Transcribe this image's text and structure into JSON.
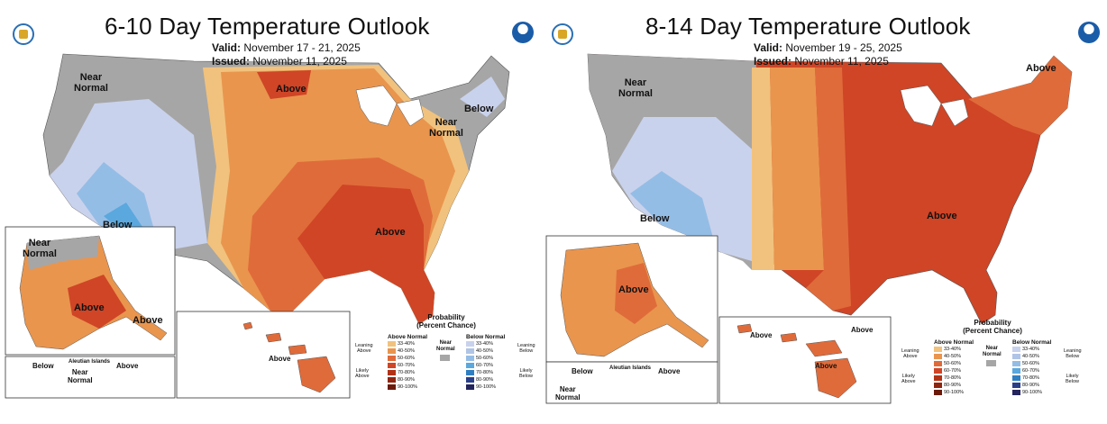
{
  "left": {
    "title": "6-10 Day Temperature Outlook",
    "valid_label": "Valid:",
    "valid": "November 17 - 21, 2025",
    "issued_label": "Issued:",
    "issued": "November 11, 2025",
    "map_labels": {
      "near_normal_nw": "Near\nNormal",
      "above_north": "Above",
      "below_ne": "Below",
      "near_normal_ne": "Near\nNormal",
      "below_sw": "Below",
      "above_se": "Above",
      "ak_near_normal": "Near\nNormal",
      "ak_above": "Above",
      "ak_above_se": "Above",
      "aleutian_title": "Aleutian Islands",
      "aleutian_below": "Below",
      "aleutian_near_normal": "Near\nNormal",
      "aleutian_above": "Above",
      "hi_above": "Above"
    },
    "legend": {
      "title": "Probability\n(Percent Chance)",
      "above_header": "Above Normal",
      "below_header": "Below Normal",
      "near_normal": "Near\nNormal",
      "leaning_above": "Leaning\nAbove",
      "likely_above": "Likely\nAbove",
      "leaning_below": "Leaning\nBelow",
      "likely_below": "Likely\nBelow",
      "ranges": [
        "33-40%",
        "40-50%",
        "50-60%",
        "60-70%",
        "70-80%",
        "80-90%",
        "90-100%"
      ]
    }
  },
  "right": {
    "title": "8-14 Day Temperature Outlook",
    "valid_label": "Valid:",
    "valid": "November 19 - 25, 2025",
    "issued_label": "Issued:",
    "issued": "November 11, 2025",
    "map_labels": {
      "near_normal_nw": "Near\nNormal",
      "above_ne": "Above",
      "below_sw": "Below",
      "above_se": "Above",
      "ak_above": "Above",
      "aleutian_title": "Aleutian Islands",
      "aleutian_below": "Below",
      "aleutian_near_normal": "Near\nNormal",
      "aleutian_above": "Above",
      "hi_above_w": "Above",
      "hi_above_n": "Above",
      "hi_above_s": "Above"
    },
    "legend": {
      "title": "Probability\n(Percent Chance)",
      "above_header": "Above Normal",
      "below_header": "Below Normal",
      "near_normal": "Near\nNormal",
      "leaning_above": "Leaning\nAbove",
      "likely_above": "Likely\nAbove",
      "leaning_below": "Leaning\nBelow",
      "likely_below": "Likely\nBelow",
      "ranges": [
        "33-40%",
        "40-50%",
        "50-60%",
        "60-70%",
        "70-80%",
        "80-90%",
        "90-100%"
      ]
    }
  },
  "colors": {
    "near_normal": "#a6a6a6",
    "above": [
      "#f1c27d",
      "#e9954e",
      "#e06b3a",
      "#cf4526",
      "#b23216",
      "#8f2510",
      "#6b1a0a"
    ],
    "below": [
      "#c9d2ec",
      "#b0c4e6",
      "#94bde6",
      "#5aa8dd",
      "#2f7fc2",
      "#2a3f8a",
      "#24245e"
    ]
  }
}
